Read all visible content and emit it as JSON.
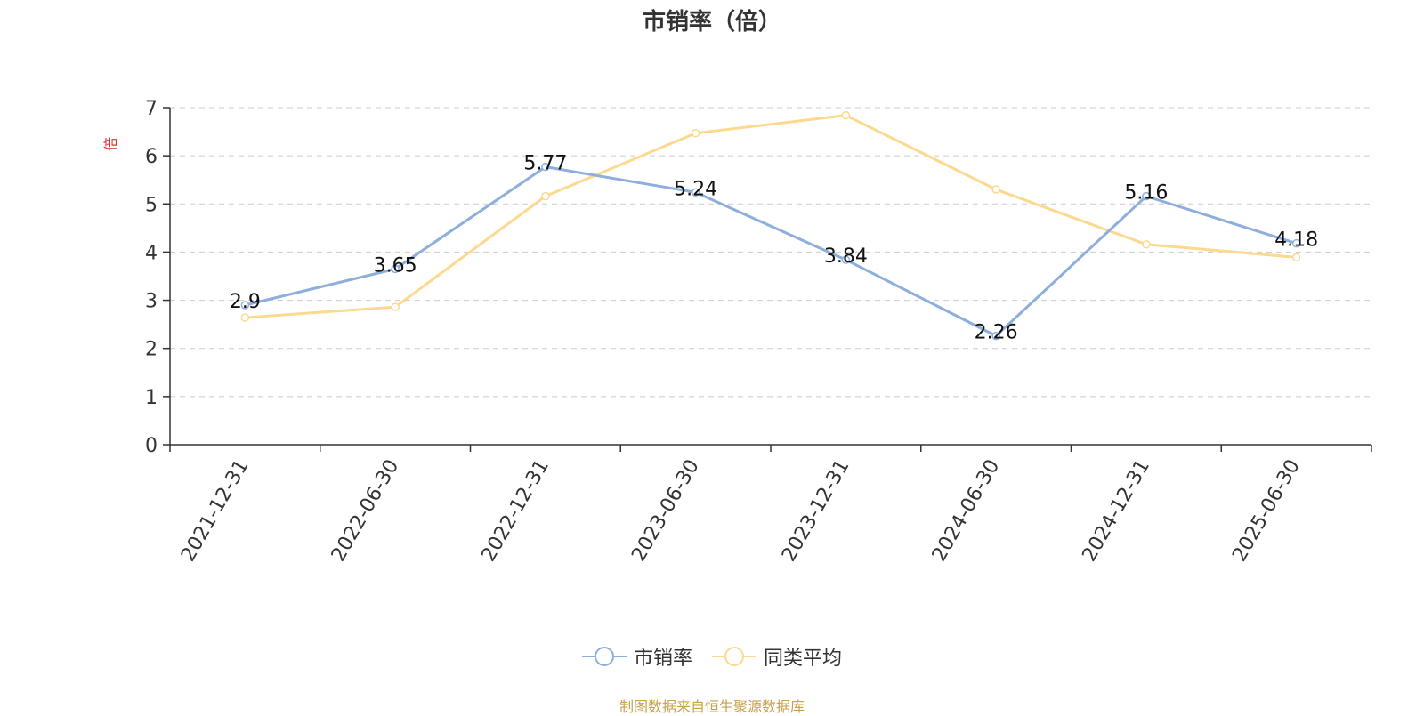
{
  "chart_data": {
    "type": "line",
    "title": "市销率（倍）",
    "ylabel": "倍",
    "xlabel": "",
    "categories": [
      "2021-12-31",
      "2022-06-30",
      "2022-12-31",
      "2023-06-30",
      "2023-12-31",
      "2024-06-30",
      "2024-12-31",
      "2025-06-30"
    ],
    "ylim": [
      0,
      7
    ],
    "yticks": [
      0,
      1,
      2,
      3,
      4,
      5,
      6,
      7
    ],
    "grid": true,
    "legend_position": "bottom",
    "series": [
      {
        "name": "市销率",
        "color": "#8eaedb",
        "values": [
          2.9,
          3.65,
          5.77,
          5.24,
          3.84,
          2.26,
          5.16,
          4.18
        ],
        "labels": [
          "2.9",
          "3.65",
          "5.77",
          "5.24",
          "3.84",
          "2.26",
          "5.16",
          "4.18"
        ]
      },
      {
        "name": "同类平均",
        "color": "#fcd98f",
        "values": [
          2.64,
          2.86,
          5.16,
          6.47,
          6.84,
          5.3,
          4.16,
          3.89
        ]
      }
    ]
  },
  "footer": "制图数据来自恒生聚源数据库"
}
